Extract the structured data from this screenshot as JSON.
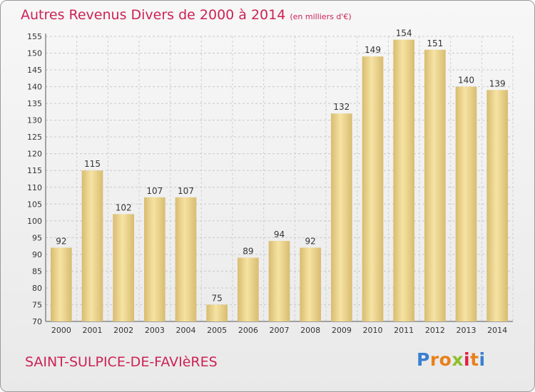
{
  "title": "Autres Revenus Divers de 2000 à 2014",
  "unit": "(en milliers d'€)",
  "commune": "SAINT-SULPICE-DE-FAVIèRES",
  "logo": {
    "letters": [
      "P",
      "r",
      "o",
      "x",
      "i",
      "t",
      "i"
    ],
    "colors": [
      "#3a7fd0",
      "#e8801c",
      "#e8801c",
      "#8dbf2c",
      "#e2203f",
      "#e8801c",
      "#3a7fd0"
    ]
  },
  "colors": {
    "bar_light": "#f6e3a3",
    "bar_dark": "#d8bc70",
    "accent": "#cc2255"
  },
  "chart_data": {
    "type": "bar",
    "categories": [
      "2000",
      "2001",
      "2002",
      "2003",
      "2004",
      "2005",
      "2006",
      "2007",
      "2008",
      "2009",
      "2010",
      "2011",
      "2012",
      "2013",
      "2014"
    ],
    "values": [
      92,
      115,
      102,
      107,
      107,
      75,
      89,
      94,
      92,
      132,
      149,
      154,
      151,
      140,
      139
    ],
    "ylim": [
      70,
      155
    ],
    "yticks": [
      70,
      75,
      80,
      85,
      90,
      95,
      100,
      105,
      110,
      115,
      120,
      125,
      130,
      135,
      140,
      145,
      150,
      155
    ],
    "grid": true,
    "legend": "none"
  }
}
